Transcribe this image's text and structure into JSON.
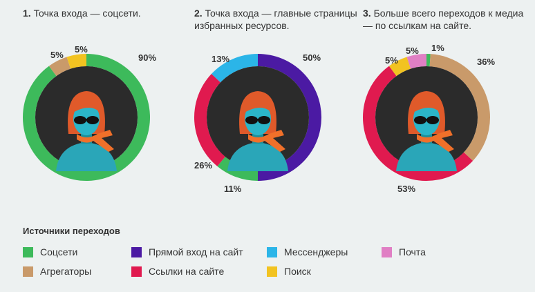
{
  "colors": {
    "social": "#3dba5b",
    "direct": "#4b1aa3",
    "messengers": "#2bb5e8",
    "mail": "#e07fc4",
    "aggregators": "#c99a6a",
    "links": "#e01a4f",
    "search": "#f2c321"
  },
  "panels": [
    {
      "num": "1.",
      "title": "Точка входа — соцсети."
    },
    {
      "num": "2.",
      "title": "Точка входа — главные страницы избранных ресурсов."
    },
    {
      "num": "3.",
      "title": "Больше всего переходов к медиа — по ссылкам на сайте."
    }
  ],
  "chart_data": [
    {
      "type": "pie",
      "slices": [
        {
          "source": "Соцсети",
          "value": 90,
          "label": "90%",
          "color": "#3dba5b"
        },
        {
          "source": "Агрегаторы",
          "value": 5,
          "label": "5%",
          "color": "#c99a6a"
        },
        {
          "source": "Поиск",
          "value": 5,
          "label": "5%",
          "color": "#f2c321"
        }
      ]
    },
    {
      "type": "pie",
      "slices": [
        {
          "source": "Прямой вход на сайт",
          "value": 50,
          "label": "50%",
          "color": "#4b1aa3"
        },
        {
          "source": "Соцсети",
          "value": 11,
          "label": "11%",
          "color": "#3dba5b"
        },
        {
          "source": "Ссылки на сайте",
          "value": 26,
          "label": "26%",
          "color": "#e01a4f"
        },
        {
          "source": "Мессенджеры",
          "value": 13,
          "label": "13%",
          "color": "#2bb5e8"
        }
      ]
    },
    {
      "type": "pie",
      "slices": [
        {
          "source": "Соцсети",
          "value": 1,
          "label": "1%",
          "color": "#3dba5b"
        },
        {
          "source": "Агрегаторы",
          "value": 36,
          "label": "36%",
          "color": "#c99a6a"
        },
        {
          "source": "Ссылки на сайте",
          "value": 53,
          "label": "53%",
          "color": "#e01a4f"
        },
        {
          "source": "Поиск",
          "value": 5,
          "label": "5%",
          "color": "#f2c321"
        },
        {
          "source": "Почта",
          "value": 5,
          "label": "5%",
          "color": "#e07fc4"
        }
      ]
    }
  ],
  "legend": {
    "title": "Источники переходов",
    "items": [
      {
        "label": "Соцсети",
        "color": "#3dba5b"
      },
      {
        "label": "Прямой вход на сайт",
        "color": "#4b1aa3"
      },
      {
        "label": "Мессенджеры",
        "color": "#2bb5e8"
      },
      {
        "label": "Почта",
        "color": "#e07fc4"
      },
      {
        "label": "Агрегаторы",
        "color": "#c99a6a"
      },
      {
        "label": "Ссылки на сайте",
        "color": "#e01a4f"
      },
      {
        "label": "Поиск",
        "color": "#f2c321"
      }
    ]
  }
}
